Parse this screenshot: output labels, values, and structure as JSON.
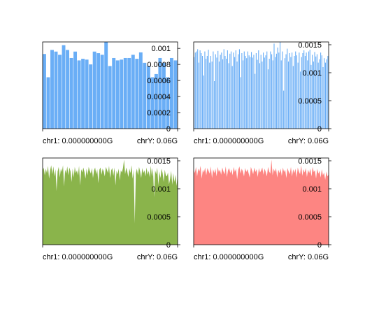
{
  "chart_data": [
    {
      "type": "bar",
      "color": "#6aaef6",
      "ylim": [
        0,
        0.00108
      ],
      "yticks": [
        0,
        0.0002,
        0.0004,
        0.0006,
        0.0008,
        0.001
      ],
      "ytick_labels": [
        "0",
        "0.0002",
        "0.0004",
        "0.0006",
        "0.0008",
        "0.001"
      ],
      "xtick_labels": [
        "chr1: 0.000000000G",
        "chrY: 0.06G"
      ],
      "values": [
        0.00093,
        0.00064,
        0.00098,
        0.00096,
        0.00092,
        0.00104,
        0.00098,
        0.00088,
        0.00096,
        0.00085,
        0.00087,
        0.00086,
        0.0008,
        0.00096,
        0.00094,
        0.00092,
        0.00108,
        0.00078,
        0.00088,
        0.00085,
        0.00086,
        0.00088,
        0.00088,
        0.00092,
        0.00087,
        0.00095,
        0.00082,
        0.00078,
        0.00064,
        0.00068,
        0.00088,
        0.00082,
        0.00064,
        0.00088,
        0.00085
      ]
    },
    {
      "type": "bar",
      "color": "#6aaef6",
      "ylim": [
        0,
        0.00155
      ],
      "yticks": [
        0,
        0.0005,
        0.001,
        0.0015
      ],
      "ytick_labels": [
        "0",
        "0.0005",
        "0.001",
        "0.0015"
      ],
      "xtick_labels": [
        "chr1: 0.000000000G",
        "chrY: 0.06G"
      ],
      "values": [
        0.00128,
        0.00136,
        0.00138,
        0.00142,
        0.00118,
        0.0014,
        0.00135,
        0.0013,
        0.00095,
        0.00138,
        0.00125,
        0.0013,
        0.00141,
        0.00118,
        0.0013,
        0.0012,
        0.00138,
        0.00085,
        0.00133,
        0.00127,
        0.00139,
        0.0012,
        0.00132,
        0.00136,
        0.00124,
        0.00142,
        0.0013,
        0.00125,
        0.0014,
        0.00117,
        0.00134,
        0.00138,
        0.00112,
        0.00136,
        0.00128,
        0.0014,
        0.0012,
        0.00133,
        0.00142,
        0.00092,
        0.00135,
        0.00122,
        0.00138,
        0.0013,
        0.00126,
        0.00138,
        0.00131,
        0.00128,
        0.00137,
        0.00127,
        0.00132,
        0.00098,
        0.00135,
        0.00123,
        0.0014,
        0.00117,
        0.00132,
        0.0012,
        0.00136,
        0.00127,
        0.00131,
        0.00138,
        0.00106,
        0.00125,
        0.00138,
        0.00133,
        0.00122,
        0.00152,
        0.00128,
        0.00134,
        0.00145,
        0.00136,
        0.00155,
        0.00122,
        0.00138,
        0.00068,
        0.00126,
        0.00133,
        0.00143,
        0.0012,
        0.00135,
        0.00128,
        0.00136,
        0.00112,
        0.0013,
        0.00138,
        0.00131,
        0.00118,
        0.00136,
        0.00102,
        0.00128,
        0.00135,
        0.0014,
        0.0013,
        0.00136,
        0.00122,
        0.00138,
        0.00141,
        0.00114,
        0.00132,
        0.0012,
        0.00137,
        0.00129,
        0.00133,
        0.00118,
        0.00124,
        0.00136,
        0.00131,
        0.0011,
        0.00126,
        0.00118,
        0.00124,
        0.0013
      ]
    },
    {
      "type": "area",
      "color": "#8ab44b",
      "ylim": [
        0,
        0.00155
      ],
      "yticks": [
        0,
        0.0005,
        0.001,
        0.0015
      ],
      "ytick_labels": [
        "0",
        "0.0005",
        "0.001",
        "0.0015"
      ],
      "xtick_labels": [
        "chr1: 0.000000000G",
        "chrY: 0.06G"
      ],
      "values": [
        0.00132,
        0.00138,
        0.00124,
        0.00136,
        0.00128,
        0.00141,
        0.00118,
        0.00133,
        0.00142,
        0.00126,
        0.0014,
        0.00122,
        0.00135,
        0.00096,
        0.00131,
        0.00139,
        0.0012,
        0.00136,
        0.0013,
        0.00142,
        0.00104,
        0.00134,
        0.00127,
        0.0014,
        0.00124,
        0.00138,
        0.00131,
        0.00112,
        0.00136,
        0.0012,
        0.00139,
        0.00128,
        0.00133,
        0.00124,
        0.00141,
        0.00106,
        0.00135,
        0.00129,
        0.00138,
        0.0013,
        0.00118,
        0.00136,
        0.00124,
        0.00139,
        0.00132,
        0.00127,
        0.00137,
        0.00119,
        0.00133,
        0.00138,
        0.00126,
        0.00135,
        0.0011,
        0.00134,
        0.00138,
        0.00125,
        0.00136,
        0.00131,
        0.00122,
        0.00139,
        0.00134,
        0.00128,
        0.00141,
        0.00119,
        0.00133,
        0.00137,
        0.00123,
        0.00138,
        0.00106,
        0.00132,
        0.00126,
        0.00136,
        0.00115,
        0.00133,
        0.00129,
        0.00137,
        0.00152,
        0.00126,
        0.00138,
        0.00131,
        0.00121,
        0.00136,
        0.00128,
        0.00142,
        0.00118,
        0.00134,
        0.00038,
        0.00128,
        0.00136,
        0.00124,
        0.00139,
        0.00131,
        0.00119,
        0.00137,
        0.00128,
        0.00133,
        0.00122,
        0.00138,
        0.00125,
        0.00132,
        0.0012,
        0.00141,
        0.00122,
        0.00137,
        0.00085,
        0.00133,
        0.00126,
        0.00138,
        0.00106,
        0.00131,
        0.00119,
        0.00136,
        0.00128,
        0.00112,
        0.00134,
        0.00124,
        0.00122,
        0.00129,
        0.00108,
        0.00118,
        0.00132,
        0.00107,
        0.00128,
        0.00112,
        0.00125,
        0.00105,
        0.00124
      ]
    },
    {
      "type": "area",
      "color": "#fd8582",
      "ylim": [
        0,
        0.00155
      ],
      "yticks": [
        0,
        0.0005,
        0.001,
        0.0015
      ],
      "ytick_labels": [
        "0",
        "0.0005",
        "0.001",
        "0.0015"
      ],
      "xtick_labels": [
        "chr1: 0.000000000G",
        "chrY: 0.06G"
      ],
      "values": [
        0.00135,
        0.00128,
        0.00139,
        0.00122,
        0.00136,
        0.00131,
        0.00141,
        0.00118,
        0.00134,
        0.00129,
        0.00138,
        0.00124,
        0.00137,
        0.00132,
        0.00127,
        0.0014,
        0.00119,
        0.00135,
        0.00128,
        0.00136,
        0.00122,
        0.00139,
        0.0013,
        0.00134,
        0.00125,
        0.00138,
        0.00131,
        0.00126,
        0.0014,
        0.00121,
        0.00133,
        0.00137,
        0.00128,
        0.00135,
        0.00124,
        0.00139,
        0.0013,
        0.00136,
        0.00117,
        0.00134,
        0.0014,
        0.00127,
        0.00136,
        0.00131,
        0.00122,
        0.00137,
        0.0013,
        0.00135,
        0.00128,
        0.0012,
        0.00139,
        0.00133,
        0.00126,
        0.00138,
        0.0013,
        0.00135,
        0.00121,
        0.00137,
        0.00129,
        0.00133,
        0.00138,
        0.00125,
        0.00136,
        0.0013,
        0.00122,
        0.00139,
        0.00131,
        0.00127,
        0.00152,
        0.00124,
        0.00136,
        0.0013,
        0.00137,
        0.0012,
        0.00134,
        0.00128,
        0.00136,
        0.00123,
        0.00138,
        0.0013,
        0.00134,
        0.00119,
        0.00137,
        0.00131,
        0.00126,
        0.00139,
        0.00122,
        0.00135,
        0.00128,
        0.00136,
        0.0012,
        0.00138,
        0.00131,
        0.00126,
        0.00142,
        0.00123,
        0.00135,
        0.00129,
        0.00137,
        0.00121,
        0.00134,
        0.00128,
        0.00136,
        0.00122,
        0.00139,
        0.0013,
        0.00133,
        0.00118,
        0.00136,
        0.00127,
        0.00132,
        0.0012,
        0.00135,
        0.00124,
        0.00129,
        0.00116,
        0.00131,
        0.00122,
        0.00126
      ]
    }
  ]
}
